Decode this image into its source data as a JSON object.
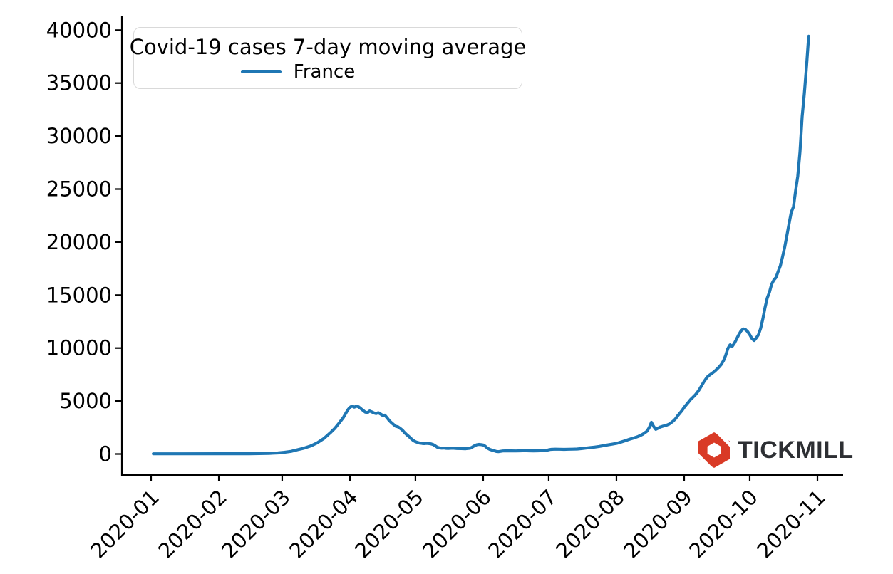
{
  "chart_data": {
    "type": "line",
    "title": "Covid-19 cases 7-day moving average",
    "xlabel": "",
    "ylabel": "",
    "grid": false,
    "legend": {
      "title": "Covid-19 cases 7-day moving average",
      "position": "upper left",
      "entries": [
        {
          "label": "France",
          "color": "#1f77b4"
        }
      ]
    },
    "x_tick_labels": [
      "2020-01",
      "2020-02",
      "2020-03",
      "2020-04",
      "2020-05",
      "2020-06",
      "2020-07",
      "2020-08",
      "2020-09",
      "2020-10",
      "2020-11"
    ],
    "y_ticks": [
      0,
      5000,
      10000,
      15000,
      20000,
      25000,
      30000,
      35000,
      40000
    ],
    "y_tick_labels": [
      "0",
      "5000",
      "10000",
      "15000",
      "20000",
      "25000",
      "30000",
      "35000",
      "40000"
    ],
    "ylim": [
      0,
      40000
    ],
    "xlim": [
      "2020-01-01",
      "2020-11-01"
    ],
    "series": [
      {
        "name": "France",
        "color": "#1f77b4",
        "points": [
          [
            "2020-01-02",
            20
          ],
          [
            "2020-01-15",
            20
          ],
          [
            "2020-02-01",
            25
          ],
          [
            "2020-02-15",
            30
          ],
          [
            "2020-02-24",
            60
          ],
          [
            "2020-02-28",
            100
          ],
          [
            "2020-03-02",
            160
          ],
          [
            "2020-03-05",
            250
          ],
          [
            "2020-03-08",
            400
          ],
          [
            "2020-03-11",
            550
          ],
          [
            "2020-03-14",
            750
          ],
          [
            "2020-03-17",
            1050
          ],
          [
            "2020-03-20",
            1450
          ],
          [
            "2020-03-23",
            2000
          ],
          [
            "2020-03-25",
            2400
          ],
          [
            "2020-03-27",
            2900
          ],
          [
            "2020-03-29",
            3450
          ],
          [
            "2020-03-31",
            4150
          ],
          [
            "2020-04-01",
            4400
          ],
          [
            "2020-04-02",
            4530
          ],
          [
            "2020-04-03",
            4420
          ],
          [
            "2020-04-04",
            4510
          ],
          [
            "2020-04-05",
            4450
          ],
          [
            "2020-04-06",
            4280
          ],
          [
            "2020-04-07",
            4120
          ],
          [
            "2020-04-08",
            3960
          ],
          [
            "2020-04-09",
            3900
          ],
          [
            "2020-04-10",
            4060
          ],
          [
            "2020-04-11",
            3980
          ],
          [
            "2020-04-12",
            3880
          ],
          [
            "2020-04-13",
            3820
          ],
          [
            "2020-04-14",
            3900
          ],
          [
            "2020-04-15",
            3780
          ],
          [
            "2020-04-16",
            3640
          ],
          [
            "2020-04-17",
            3660
          ],
          [
            "2020-04-18",
            3420
          ],
          [
            "2020-04-19",
            3160
          ],
          [
            "2020-04-20",
            2960
          ],
          [
            "2020-04-21",
            2780
          ],
          [
            "2020-04-22",
            2620
          ],
          [
            "2020-04-23",
            2560
          ],
          [
            "2020-04-24",
            2420
          ],
          [
            "2020-04-25",
            2260
          ],
          [
            "2020-04-26",
            2020
          ],
          [
            "2020-04-27",
            1820
          ],
          [
            "2020-04-28",
            1650
          ],
          [
            "2020-04-29",
            1450
          ],
          [
            "2020-04-30",
            1280
          ],
          [
            "2020-05-01",
            1160
          ],
          [
            "2020-05-02",
            1090
          ],
          [
            "2020-05-03",
            1030
          ],
          [
            "2020-05-04",
            1000
          ],
          [
            "2020-05-05",
            980
          ],
          [
            "2020-05-06",
            1010
          ],
          [
            "2020-05-07",
            990
          ],
          [
            "2020-05-08",
            960
          ],
          [
            "2020-05-09",
            900
          ],
          [
            "2020-05-10",
            780
          ],
          [
            "2020-05-11",
            640
          ],
          [
            "2020-05-12",
            575
          ],
          [
            "2020-05-13",
            550
          ],
          [
            "2020-05-14",
            565
          ],
          [
            "2020-05-15",
            540
          ],
          [
            "2020-05-16",
            530
          ],
          [
            "2020-05-18",
            550
          ],
          [
            "2020-05-20",
            520
          ],
          [
            "2020-05-22",
            510
          ],
          [
            "2020-05-24",
            495
          ],
          [
            "2020-05-26",
            545
          ],
          [
            "2020-05-27",
            655
          ],
          [
            "2020-05-28",
            780
          ],
          [
            "2020-05-29",
            870
          ],
          [
            "2020-05-30",
            905
          ],
          [
            "2020-05-31",
            885
          ],
          [
            "2020-06-01",
            855
          ],
          [
            "2020-06-02",
            725
          ],
          [
            "2020-06-03",
            545
          ],
          [
            "2020-06-04",
            435
          ],
          [
            "2020-06-05",
            370
          ],
          [
            "2020-06-06",
            310
          ],
          [
            "2020-06-07",
            245
          ],
          [
            "2020-06-08",
            220
          ],
          [
            "2020-06-09",
            255
          ],
          [
            "2020-06-10",
            290
          ],
          [
            "2020-06-12",
            305
          ],
          [
            "2020-06-14",
            295
          ],
          [
            "2020-06-16",
            290
          ],
          [
            "2020-06-18",
            305
          ],
          [
            "2020-06-20",
            318
          ],
          [
            "2020-06-22",
            305
          ],
          [
            "2020-06-24",
            295
          ],
          [
            "2020-06-26",
            305
          ],
          [
            "2020-06-28",
            318
          ],
          [
            "2020-06-30",
            345
          ],
          [
            "2020-07-01",
            395
          ],
          [
            "2020-07-02",
            435
          ],
          [
            "2020-07-04",
            460
          ],
          [
            "2020-07-06",
            450
          ],
          [
            "2020-07-08",
            440
          ],
          [
            "2020-07-10",
            450
          ],
          [
            "2020-07-12",
            460
          ],
          [
            "2020-07-14",
            470
          ],
          [
            "2020-07-16",
            510
          ],
          [
            "2020-07-18",
            555
          ],
          [
            "2020-07-20",
            605
          ],
          [
            "2020-07-22",
            655
          ],
          [
            "2020-07-24",
            710
          ],
          [
            "2020-07-26",
            785
          ],
          [
            "2020-07-28",
            860
          ],
          [
            "2020-07-30",
            930
          ],
          [
            "2020-08-01",
            1000
          ],
          [
            "2020-08-03",
            1120
          ],
          [
            "2020-08-05",
            1250
          ],
          [
            "2020-08-07",
            1390
          ],
          [
            "2020-08-09",
            1520
          ],
          [
            "2020-08-11",
            1660
          ],
          [
            "2020-08-13",
            1860
          ],
          [
            "2020-08-15",
            2160
          ],
          [
            "2020-08-16",
            2500
          ],
          [
            "2020-08-17",
            2990
          ],
          [
            "2020-08-18",
            2610
          ],
          [
            "2020-08-19",
            2330
          ],
          [
            "2020-08-20",
            2430
          ],
          [
            "2020-08-21",
            2550
          ],
          [
            "2020-08-22",
            2610
          ],
          [
            "2020-08-23",
            2660
          ],
          [
            "2020-08-24",
            2730
          ],
          [
            "2020-08-25",
            2810
          ],
          [
            "2020-08-26",
            2950
          ],
          [
            "2020-08-27",
            3110
          ],
          [
            "2020-08-28",
            3310
          ],
          [
            "2020-08-29",
            3600
          ],
          [
            "2020-08-30",
            3850
          ],
          [
            "2020-08-31",
            4100
          ],
          [
            "2020-09-01",
            4400
          ],
          [
            "2020-09-02",
            4660
          ],
          [
            "2020-09-03",
            4900
          ],
          [
            "2020-09-04",
            5160
          ],
          [
            "2020-09-05",
            5360
          ],
          [
            "2020-09-06",
            5560
          ],
          [
            "2020-09-07",
            5810
          ],
          [
            "2020-09-08",
            6110
          ],
          [
            "2020-09-09",
            6460
          ],
          [
            "2020-09-10",
            6810
          ],
          [
            "2020-09-11",
            7110
          ],
          [
            "2020-09-12",
            7360
          ],
          [
            "2020-09-13",
            7510
          ],
          [
            "2020-09-14",
            7660
          ],
          [
            "2020-09-15",
            7810
          ],
          [
            "2020-09-16",
            8010
          ],
          [
            "2020-09-17",
            8210
          ],
          [
            "2020-09-18",
            8460
          ],
          [
            "2020-09-19",
            8810
          ],
          [
            "2020-09-20",
            9310
          ],
          [
            "2020-09-21",
            9960
          ],
          [
            "2020-09-22",
            10310
          ],
          [
            "2020-09-23",
            10160
          ],
          [
            "2020-09-24",
            10460
          ],
          [
            "2020-09-25",
            10860
          ],
          [
            "2020-09-26",
            11260
          ],
          [
            "2020-09-27",
            11610
          ],
          [
            "2020-09-28",
            11810
          ],
          [
            "2020-09-29",
            11760
          ],
          [
            "2020-09-30",
            11560
          ],
          [
            "2020-10-01",
            11260
          ],
          [
            "2020-10-02",
            10910
          ],
          [
            "2020-10-03",
            10710
          ],
          [
            "2020-10-04",
            10960
          ],
          [
            "2020-10-05",
            11260
          ],
          [
            "2020-10-06",
            11860
          ],
          [
            "2020-10-07",
            12760
          ],
          [
            "2020-10-08",
            13810
          ],
          [
            "2020-10-09",
            14710
          ],
          [
            "2020-10-10",
            15260
          ],
          [
            "2020-10-11",
            16010
          ],
          [
            "2020-10-12",
            16410
          ],
          [
            "2020-10-13",
            16660
          ],
          [
            "2020-10-14",
            17210
          ],
          [
            "2020-10-15",
            17760
          ],
          [
            "2020-10-16",
            18610
          ],
          [
            "2020-10-17",
            19510
          ],
          [
            "2020-10-18",
            20610
          ],
          [
            "2020-10-19",
            21710
          ],
          [
            "2020-10-20",
            22810
          ],
          [
            "2020-10-21",
            23310
          ],
          [
            "2020-10-22",
            24810
          ],
          [
            "2020-10-23",
            26210
          ],
          [
            "2020-10-24",
            28510
          ],
          [
            "2020-10-25",
            31810
          ],
          [
            "2020-10-26",
            34010
          ],
          [
            "2020-10-27",
            36610
          ],
          [
            "2020-10-28",
            39420
          ]
        ]
      }
    ]
  },
  "colors": {
    "line": "#1f77b4",
    "axis": "#000000",
    "legend_border": "#d9d9d9",
    "logo_red": "#d93a26",
    "logo_text": "#2d2f33"
  },
  "branding": {
    "logo_text": "TICKMILL",
    "logo_icon": "tickmill-hexagon-icon"
  }
}
